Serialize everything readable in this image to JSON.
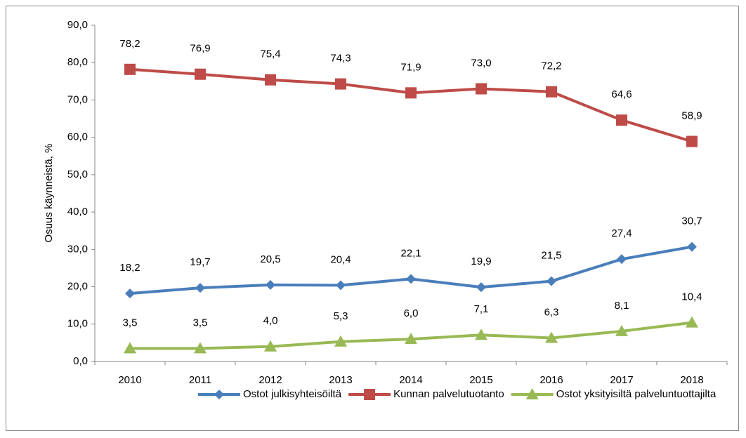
{
  "chart_data": {
    "type": "line",
    "y_label": "Osuus käynneistä, %",
    "categories": [
      "2010",
      "2011",
      "2012",
      "2013",
      "2014",
      "2015",
      "2016",
      "2017",
      "2018"
    ],
    "series": [
      {
        "name": "Ostot julkisyhteisöiltä",
        "color": "#4a7ebb",
        "marker": "diamond",
        "values": [
          18.2,
          19.7,
          20.5,
          20.4,
          22.1,
          19.9,
          21.5,
          27.4,
          30.7
        ],
        "value_labels": [
          "18,2",
          "19,7",
          "20,5",
          "20,4",
          "22,1",
          "19,9",
          "21,5",
          "27,4",
          "30,7"
        ]
      },
      {
        "name": "Kunnan palvelutuotanto",
        "color": "#be4b48",
        "marker": "square",
        "values": [
          78.2,
          76.9,
          75.4,
          74.3,
          71.9,
          73.0,
          72.2,
          64.6,
          58.9
        ],
        "value_labels": [
          "78,2",
          "76,9",
          "75,4",
          "74,3",
          "71,9",
          "73,0",
          "72,2",
          "64,6",
          "58,9"
        ]
      },
      {
        "name": "Ostot yksityisiltä palveluntuottajilta",
        "color": "#98b954",
        "marker": "triangle",
        "values": [
          3.5,
          3.5,
          4.0,
          5.3,
          6.0,
          7.1,
          6.3,
          8.1,
          10.4
        ],
        "value_labels": [
          "3,5",
          "3,5",
          "4,0",
          "5,3",
          "6,0",
          "7,1",
          "6,3",
          "8,1",
          "10,4"
        ]
      }
    ],
    "ylim": [
      0,
      90
    ],
    "yticks": [
      {
        "value": 0,
        "label": "0,0"
      },
      {
        "value": 10,
        "label": "10,0"
      },
      {
        "value": 20,
        "label": "20,0"
      },
      {
        "value": 30,
        "label": "30,0"
      },
      {
        "value": 40,
        "label": "40,0"
      },
      {
        "value": 50,
        "label": "50,0"
      },
      {
        "value": 60,
        "label": "60,0"
      },
      {
        "value": 70,
        "label": "70,0"
      },
      {
        "value": 80,
        "label": "80,0"
      },
      {
        "value": 90,
        "label": "90,0"
      }
    ],
    "grid": false,
    "legend": "bottom"
  }
}
